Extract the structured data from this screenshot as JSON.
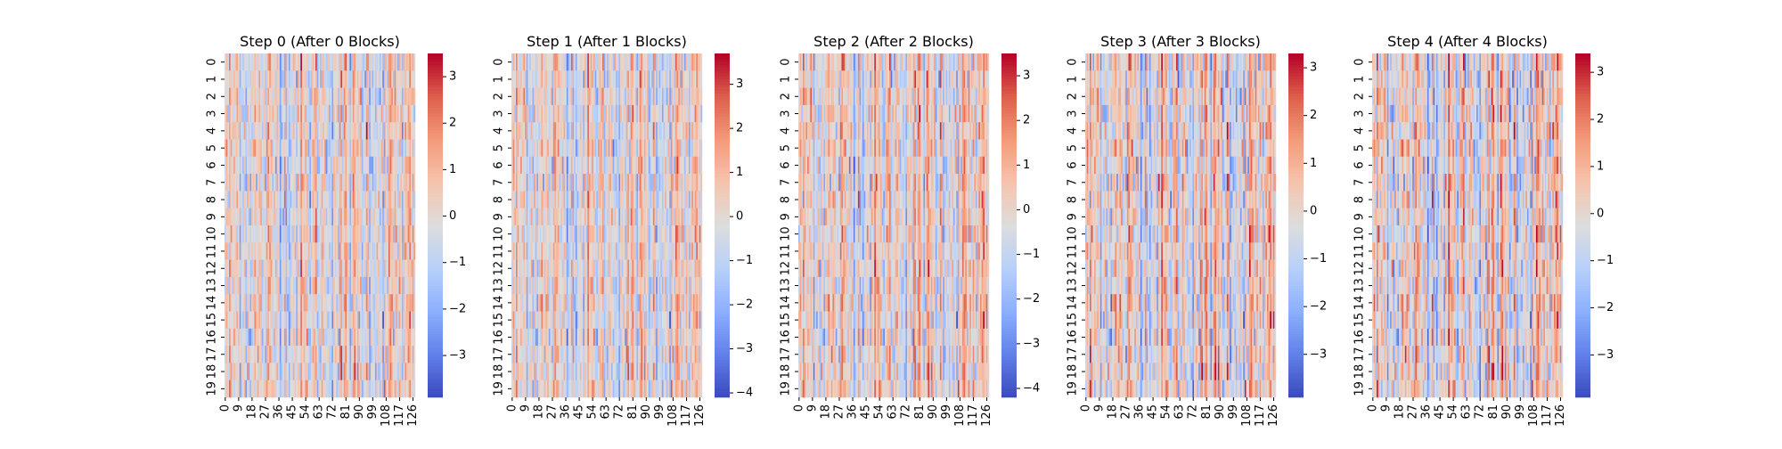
{
  "chart_data": [
    {
      "type": "heatmap",
      "title": "Step 0 (After 0 Blocks)",
      "rows": 20,
      "columns": 128,
      "row_tick_labels": [
        "0",
        "1",
        "2",
        "3",
        "4",
        "5",
        "6",
        "7",
        "8",
        "9",
        "10",
        "11",
        "12",
        "13",
        "14",
        "15",
        "16",
        "17",
        "18",
        "19"
      ],
      "column_tick_labels": [
        "0",
        "9",
        "18",
        "27",
        "36",
        "45",
        "54",
        "63",
        "72",
        "81",
        "90",
        "99",
        "108",
        "117",
        "126"
      ],
      "colorbar": {
        "ticks": [
          -3,
          -2,
          -1,
          0,
          1,
          2,
          3
        ],
        "min": -3.9,
        "max": 3.5,
        "colormap": "coolwarm"
      }
    },
    {
      "type": "heatmap",
      "title": "Step 1 (After 1 Blocks)",
      "rows": 20,
      "columns": 128,
      "row_tick_labels": [
        "0",
        "1",
        "2",
        "3",
        "4",
        "5",
        "6",
        "7",
        "8",
        "9",
        "10",
        "11",
        "12",
        "13",
        "14",
        "15",
        "16",
        "17",
        "18",
        "19"
      ],
      "column_tick_labels": [
        "0",
        "9",
        "18",
        "27",
        "36",
        "45",
        "54",
        "63",
        "72",
        "81",
        "90",
        "99",
        "108",
        "117",
        "126"
      ],
      "colorbar": {
        "ticks": [
          -4,
          -3,
          -2,
          -1,
          0,
          1,
          2,
          3
        ],
        "min": -4.1,
        "max": 3.7,
        "colormap": "coolwarm"
      }
    },
    {
      "type": "heatmap",
      "title": "Step 2 (After 2 Blocks)",
      "rows": 20,
      "columns": 128,
      "row_tick_labels": [
        "0",
        "1",
        "2",
        "3",
        "4",
        "5",
        "6",
        "7",
        "8",
        "9",
        "10",
        "11",
        "12",
        "13",
        "14",
        "15",
        "16",
        "17",
        "18",
        "19"
      ],
      "column_tick_labels": [
        "0",
        "9",
        "18",
        "27",
        "36",
        "45",
        "54",
        "63",
        "72",
        "81",
        "90",
        "99",
        "108",
        "117",
        "126"
      ],
      "colorbar": {
        "ticks": [
          -4,
          -3,
          -2,
          -1,
          0,
          1,
          2,
          3
        ],
        "min": -4.2,
        "max": 3.5,
        "colormap": "coolwarm"
      }
    },
    {
      "type": "heatmap",
      "title": "Step 3 (After 3 Blocks)",
      "rows": 20,
      "columns": 128,
      "row_tick_labels": [
        "0",
        "1",
        "2",
        "3",
        "4",
        "5",
        "6",
        "7",
        "8",
        "9",
        "10",
        "11",
        "12",
        "13",
        "14",
        "15",
        "16",
        "17",
        "18",
        "19"
      ],
      "column_tick_labels": [
        "0",
        "9",
        "18",
        "27",
        "36",
        "45",
        "54",
        "63",
        "72",
        "81",
        "90",
        "99",
        "108",
        "117",
        "126"
      ],
      "colorbar": {
        "ticks": [
          -3,
          -2,
          -1,
          0,
          1,
          2,
          3
        ],
        "min": -3.9,
        "max": 3.3,
        "colormap": "coolwarm"
      }
    },
    {
      "type": "heatmap",
      "title": "Step 4 (After 4 Blocks)",
      "rows": 20,
      "columns": 128,
      "row_tick_labels": [
        "0",
        "1",
        "2",
        "3",
        "4",
        "5",
        "6",
        "7",
        "8",
        "9",
        "10",
        "11",
        "12",
        "13",
        "14",
        "15",
        "16",
        "17",
        "18",
        "19"
      ],
      "column_tick_labels": [
        "0",
        "9",
        "18",
        "27",
        "36",
        "45",
        "54",
        "63",
        "72",
        "81",
        "90",
        "99",
        "108",
        "117",
        "126"
      ],
      "colorbar": {
        "ticks": [
          -3,
          -2,
          -1,
          0,
          1,
          2,
          3
        ],
        "min": -3.9,
        "max": 3.4,
        "colormap": "coolwarm"
      }
    }
  ]
}
